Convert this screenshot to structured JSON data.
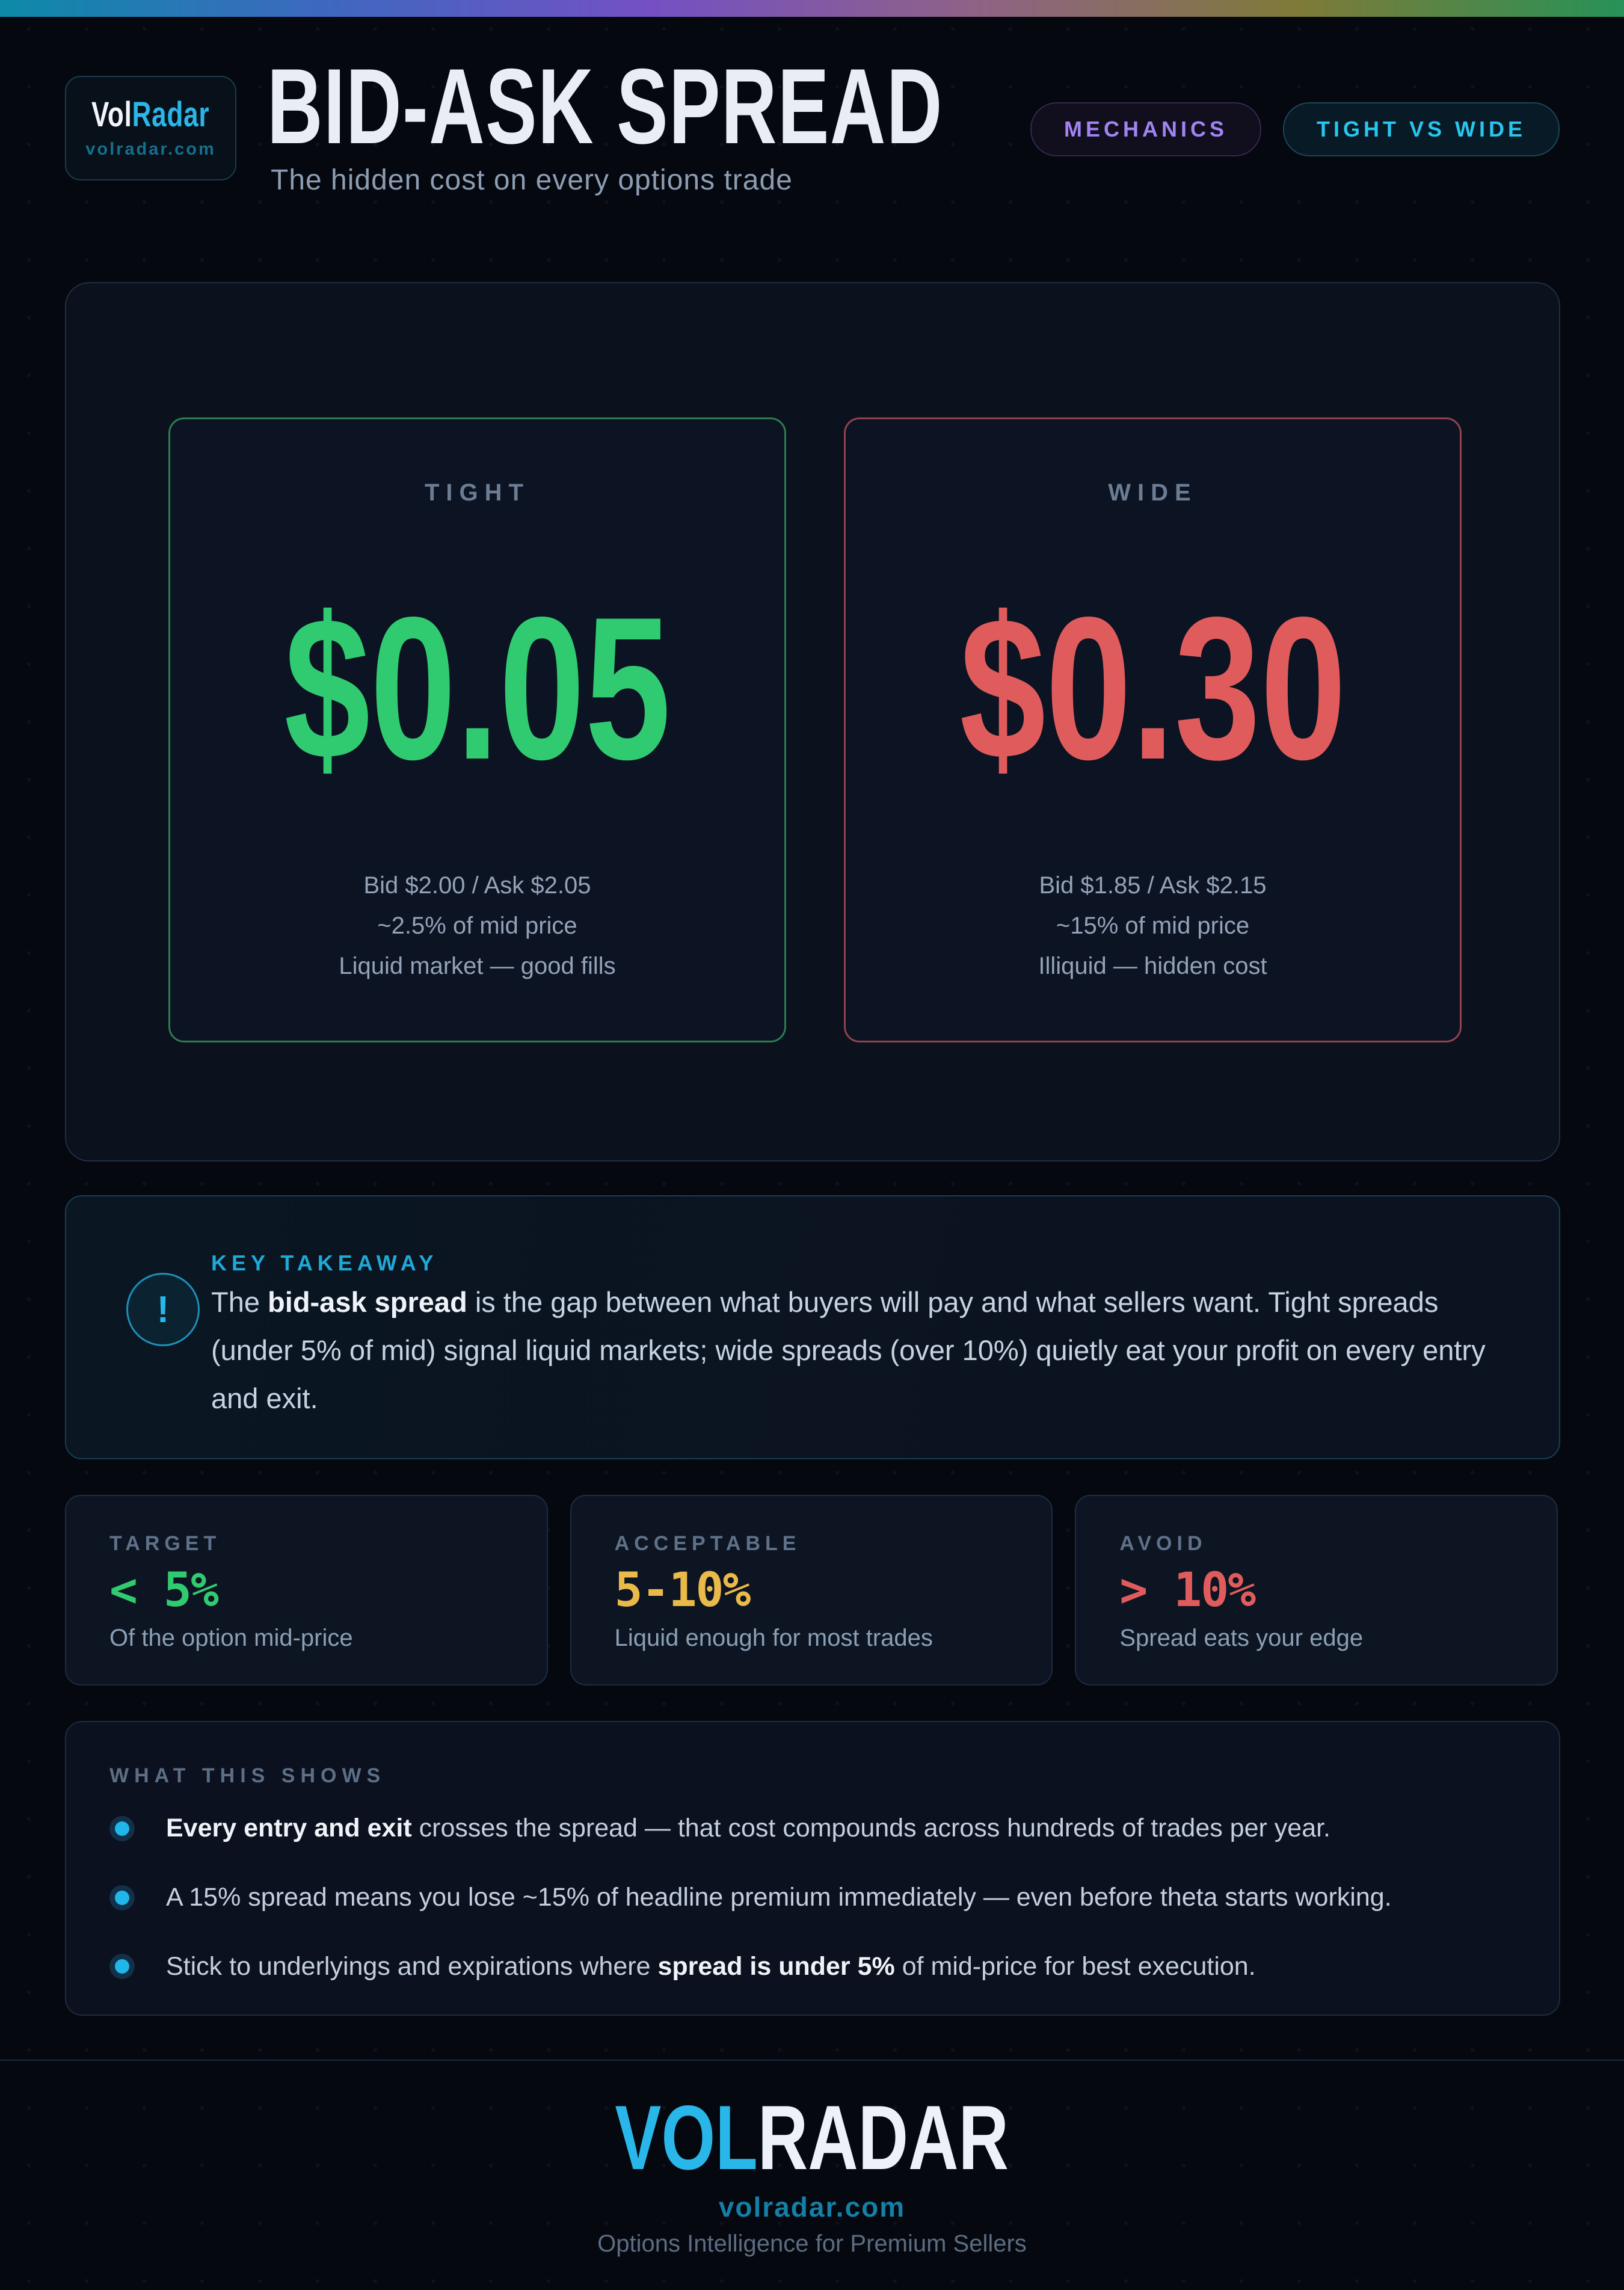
{
  "colors": {
    "accent_cyan": "#29b6e8",
    "green": "#30cb70",
    "red": "#e05c5c",
    "amber": "#e9b949",
    "purple": "#a184f2",
    "teal_badge": "#28c6ee"
  },
  "topbar_gradient": [
    "#0d8aa8",
    "#3e68c0",
    "#7450c4",
    "#8f6286",
    "#7f7a38",
    "#279257"
  ],
  "header": {
    "logo": {
      "brand_vol": "Vol",
      "brand_radar": "Radar",
      "site": "volradar.com"
    },
    "title": "BID-ASK SPREAD",
    "subtitle": "The hidden cost on every options trade",
    "badges": [
      {
        "label": "MECHANICS",
        "color": "#a184f2"
      },
      {
        "label": "TIGHT VS WIDE",
        "color": "#28c6ee"
      }
    ]
  },
  "comparison": {
    "tight": {
      "label": "TIGHT",
      "value": "$0.05",
      "color": "#30cb70",
      "lines": [
        "Bid $2.00 / Ask $2.05",
        "~2.5% of mid price",
        "Liquid market — good fills"
      ]
    },
    "wide": {
      "label": "WIDE",
      "value": "$0.30",
      "color": "#e05c5c",
      "lines": [
        "Bid $1.85 / Ask $2.15",
        "~15% of mid price",
        "Illiquid — hidden cost"
      ]
    }
  },
  "takeaway": {
    "icon": "!",
    "label": "KEY TAKEAWAY",
    "segments": [
      {
        "text": "The ",
        "bold": false
      },
      {
        "text": "bid-ask spread",
        "bold": true
      },
      {
        "text": " is the gap between what buyers will pay and what sellers want. Tight spreads (under 5% of mid) signal liquid markets; wide spreads (over 10%) quietly eat your profit on every entry and exit.",
        "bold": false
      }
    ]
  },
  "stats": [
    {
      "label": "TARGET",
      "value": "< 5%",
      "color": "#30cb70",
      "desc": "Of the option mid-price"
    },
    {
      "label": "ACCEPTABLE",
      "value": "5-10%",
      "color": "#e9b949",
      "desc": "Liquid enough for most trades"
    },
    {
      "label": "AVOID",
      "value": "> 10%",
      "color": "#e05c5c",
      "desc": "Spread eats your edge"
    }
  ],
  "shows": {
    "label": "WHAT THIS SHOWS",
    "bullets": [
      [
        {
          "text": "Every entry and exit",
          "bold": true
        },
        {
          "text": " crosses the spread — that cost compounds across hundreds of trades per year.",
          "bold": false
        }
      ],
      [
        {
          "text": "A 15% spread means you lose ~15% of headline premium immediately — even before theta starts working.",
          "bold": false
        }
      ],
      [
        {
          "text": "Stick to underlyings and expirations where ",
          "bold": false
        },
        {
          "text": "spread is under 5%",
          "bold": true
        },
        {
          "text": " of mid-price for best execution.",
          "bold": false
        }
      ]
    ]
  },
  "footer": {
    "brand_vol": "VOL",
    "brand_radar": "RADAR",
    "site": "volradar.com",
    "tagline": "Options Intelligence for Premium Sellers"
  }
}
